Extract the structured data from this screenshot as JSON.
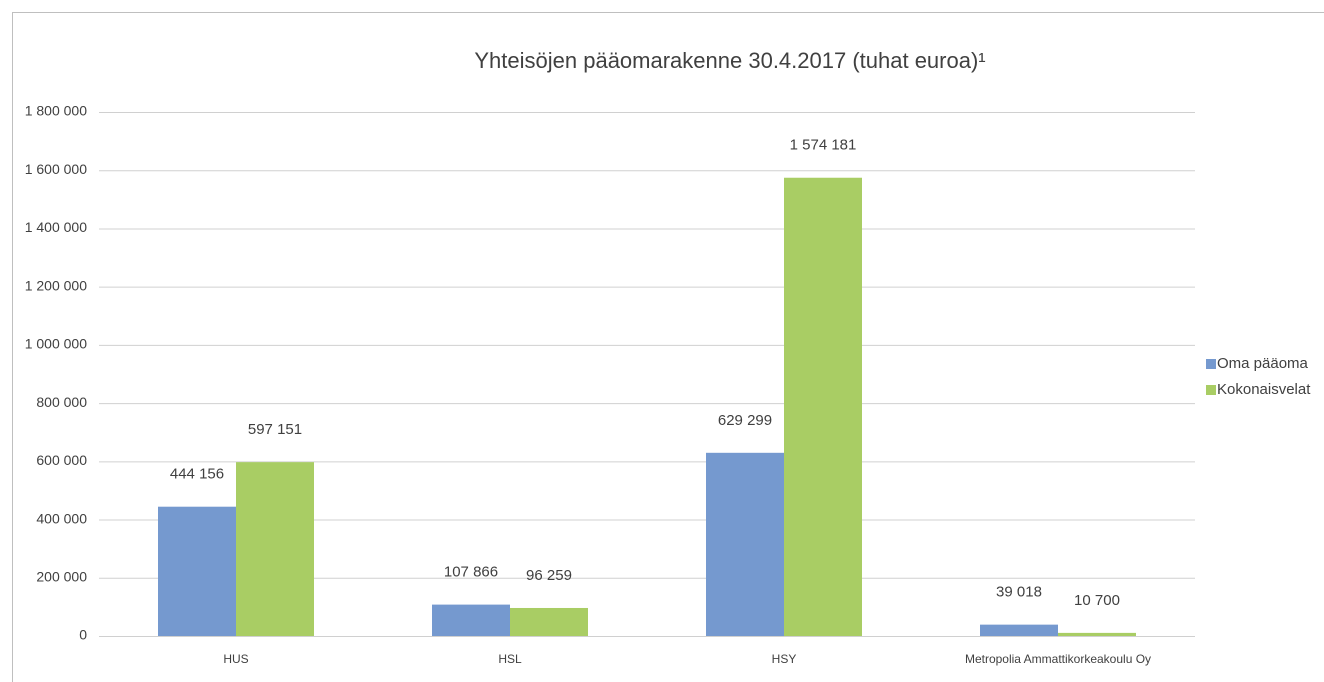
{
  "chart_data": {
    "type": "bar",
    "title": "Yhteisöjen pääomarakenne 30.4.2017 (tuhat euroa)¹",
    "categories": [
      "HUS",
      "HSL",
      "HSY",
      "Metropolia Ammattikorkeakoulu Oy"
    ],
    "series": [
      {
        "name": "Oma pääoma",
        "color": "#7599cf",
        "values": [
          444156,
          107866,
          629299,
          39018
        ],
        "value_labels": [
          "444 156",
          "107 866",
          "629 299",
          "39 018"
        ]
      },
      {
        "name": "Kokonaisvelat",
        "color": "#a9cd64",
        "values": [
          597151,
          96259,
          1574181,
          10700
        ],
        "value_labels": [
          "597 151",
          "96 259",
          "1 574 181",
          "10 700"
        ]
      }
    ],
    "ylim": [
      0,
      1800000
    ],
    "yticks": [
      0,
      {
        "value": 200000,
        "label": "200 000"
      },
      {
        "value": 400000,
        "label": "400 000"
      },
      {
        "value": 600000,
        "label": "600 000"
      },
      {
        "value": 800000,
        "label": "800 000"
      },
      {
        "value": 1000000,
        "label": "1 000 000"
      },
      {
        "value": 1200000,
        "label": "1 200 000"
      },
      {
        "value": 1400000,
        "label": "1 400 000"
      },
      {
        "value": 1600000,
        "label": "1 600 000"
      },
      {
        "value": 1800000,
        "label": "1 800 000"
      }
    ],
    "grid": true,
    "legend": "right"
  }
}
